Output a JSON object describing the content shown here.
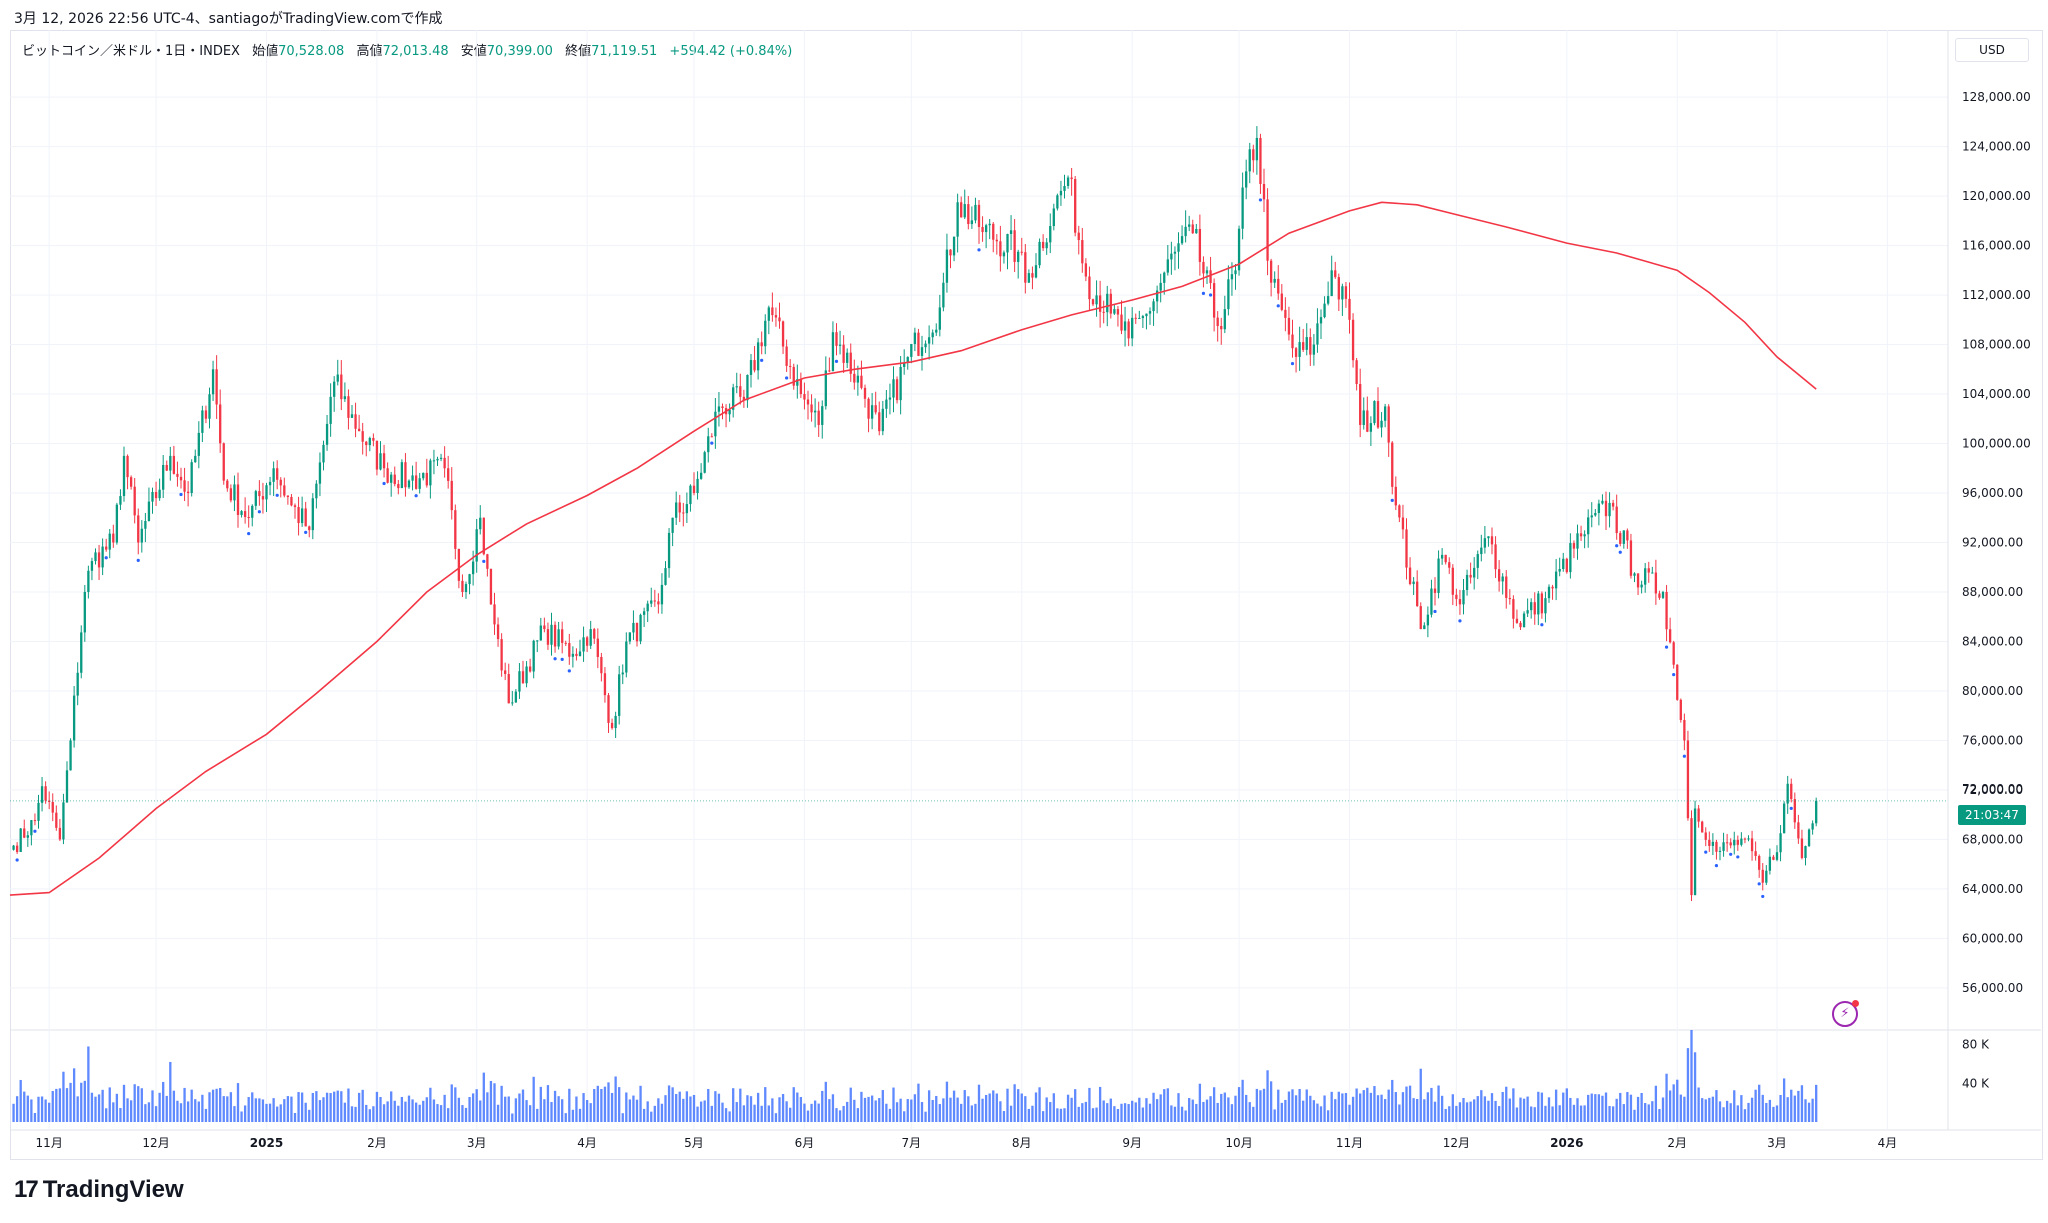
{
  "header": {
    "timestamp_line": "3月 12, 2026 22:56 UTC-4、santiagoがTradingView.comで作成",
    "symbol": "ビットコイン／米ドル・1日・INDEX",
    "open_label": "始値",
    "open": "70,528.08",
    "high_label": "高値",
    "high": "72,013.48",
    "low_label": "安値",
    "low": "70,399.00",
    "close_label": "終値",
    "close": "71,119.51",
    "change": "+594.42 (+0.84%)"
  },
  "currency": "USD",
  "countdown": "21:03:47",
  "last_price": "72,000.00",
  "brand": "TradingView",
  "colors": {
    "up": "#089981",
    "down": "#f23645",
    "ma": "#f23645",
    "volume": "#2962ff",
    "marker": "#2962ff"
  },
  "chart_data": {
    "type": "candlestick",
    "interval": "1D",
    "price_axis": {
      "range": [
        53000,
        131000
      ],
      "ticks": [
        128000,
        124000,
        120000,
        116000,
        112000,
        108000,
        104000,
        100000,
        96000,
        92000,
        88000,
        84000,
        80000,
        76000,
        72000,
        68000,
        64000,
        60000,
        56000
      ],
      "tick_labels": [
        "128,000.00",
        "124,000.00",
        "120,000.00",
        "116,000.00",
        "112,000.00",
        "108,000.00",
        "104,000.00",
        "100,000.00",
        "96,000.00",
        "92,000.00",
        "88,000.00",
        "84,000.00",
        "80,000.00",
        "76,000.00",
        "72,000.00",
        "68,000.00",
        "64,000.00",
        "60,000.00",
        "56,000.00"
      ]
    },
    "volume_axis": {
      "ticks": [
        80000,
        40000
      ],
      "tick_labels": [
        "80 K",
        "40 K"
      ]
    },
    "time_axis": {
      "labels": [
        "11月",
        "12月",
        "2025",
        "2月",
        "3月",
        "4月",
        "5月",
        "6月",
        "7月",
        "8月",
        "9月",
        "10月",
        "11月",
        "12月",
        "2026",
        "2月",
        "3月",
        "4月"
      ],
      "dates": [
        "2024-11-01",
        "2024-12-01",
        "2025-01-01",
        "2025-02-01",
        "2025-03-01",
        "2025-04-01",
        "2025-05-01",
        "2025-06-01",
        "2025-07-01",
        "2025-08-01",
        "2025-09-01",
        "2025-10-01",
        "2025-11-01",
        "2025-12-01",
        "2026-01-01",
        "2026-02-01",
        "2026-03-01",
        "2026-04-01"
      ],
      "bold": [
        false,
        false,
        true,
        false,
        false,
        false,
        false,
        false,
        false,
        false,
        false,
        false,
        false,
        false,
        true,
        false,
        false,
        false
      ],
      "range": [
        "2024-10-21",
        "2026-04-18"
      ]
    },
    "close_anchors": [
      [
        "2024-10-22",
        67500
      ],
      [
        "2024-10-28",
        69500
      ],
      [
        "2024-10-30",
        72300
      ],
      [
        "2024-11-04",
        68000
      ],
      [
        "2024-11-07",
        76000
      ],
      [
        "2024-11-11",
        88000
      ],
      [
        "2024-11-13",
        90500
      ],
      [
        "2024-11-19",
        92000
      ],
      [
        "2024-11-22",
        99000
      ],
      [
        "2024-11-26",
        92000
      ],
      [
        "2024-12-05",
        99000
      ],
      [
        "2024-12-10",
        96000
      ],
      [
        "2024-12-17",
        106000
      ],
      [
        "2024-12-20",
        97000
      ],
      [
        "2024-12-27",
        94000
      ],
      [
        "2025-01-03",
        98000
      ],
      [
        "2025-01-08",
        95000
      ],
      [
        "2025-01-13",
        93000
      ],
      [
        "2025-01-20",
        105000
      ],
      [
        "2025-01-27",
        101000
      ],
      [
        "2025-02-03",
        98000
      ],
      [
        "2025-02-10",
        97000
      ],
      [
        "2025-02-20",
        98000
      ],
      [
        "2025-02-25",
        88000
      ],
      [
        "2025-03-02",
        94000
      ],
      [
        "2025-03-05",
        87000
      ],
      [
        "2025-03-10",
        79000
      ],
      [
        "2025-03-20",
        85000
      ],
      [
        "2025-03-28",
        83000
      ],
      [
        "2025-04-02",
        85000
      ],
      [
        "2025-04-08",
        77000
      ],
      [
        "2025-04-12",
        84000
      ],
      [
        "2025-04-21",
        87000
      ],
      [
        "2025-04-25",
        94000
      ],
      [
        "2025-05-01",
        96000
      ],
      [
        "2025-05-08",
        103000
      ],
      [
        "2025-05-15",
        103500
      ],
      [
        "2025-05-22",
        111000
      ],
      [
        "2025-05-31",
        104000
      ],
      [
        "2025-06-05",
        101500
      ],
      [
        "2025-06-09",
        109000
      ],
      [
        "2025-06-17",
        104500
      ],
      [
        "2025-06-22",
        101000
      ],
      [
        "2025-06-30",
        107000
      ],
      [
        "2025-07-09",
        111000
      ],
      [
        "2025-07-14",
        119500
      ],
      [
        "2025-07-20",
        117500
      ],
      [
        "2025-07-31",
        115500
      ],
      [
        "2025-08-02",
        113000
      ],
      [
        "2025-08-10",
        119000
      ],
      [
        "2025-08-14",
        121500
      ],
      [
        "2025-08-19",
        113500
      ],
      [
        "2025-08-26",
        110500
      ],
      [
        "2025-08-31",
        108500
      ],
      [
        "2025-09-05",
        110500
      ],
      [
        "2025-09-13",
        115500
      ],
      [
        "2025-09-18",
        117000
      ],
      [
        "2025-09-25",
        109500
      ],
      [
        "2025-09-30",
        114000
      ],
      [
        "2025-10-03",
        122000
      ],
      [
        "2025-10-06",
        124700
      ],
      [
        "2025-10-10",
        113000
      ],
      [
        "2025-10-17",
        107000
      ],
      [
        "2025-10-22",
        108000
      ],
      [
        "2025-10-27",
        114000
      ],
      [
        "2025-11-01",
        110000
      ],
      [
        "2025-11-04",
        101500
      ],
      [
        "2025-11-11",
        103000
      ],
      [
        "2025-11-14",
        95000
      ],
      [
        "2025-11-21",
        85000
      ],
      [
        "2025-11-27",
        91000
      ],
      [
        "2025-12-02",
        87000
      ],
      [
        "2025-12-10",
        92500
      ],
      [
        "2025-12-18",
        85500
      ],
      [
        "2025-12-26",
        87500
      ],
      [
        "2026-01-05",
        92500
      ],
      [
        "2026-01-13",
        95200
      ],
      [
        "2026-01-20",
        89500
      ],
      [
        "2026-01-28",
        88000
      ],
      [
        "2026-02-03",
        76000
      ],
      [
        "2026-02-05",
        63500
      ],
      [
        "2026-02-06",
        70500
      ],
      [
        "2026-02-12",
        67000
      ],
      [
        "2026-02-20",
        68000
      ],
      [
        "2026-02-25",
        64500
      ],
      [
        "2026-03-02",
        68500
      ],
      [
        "2026-03-04",
        72500
      ],
      [
        "2026-03-08",
        66500
      ],
      [
        "2026-03-12",
        71119.51
      ]
    ],
    "ma_line": {
      "color": "#f23645",
      "points": [
        [
          "2024-10-21",
          63500
        ],
        [
          "2024-11-01",
          63700
        ],
        [
          "2024-11-15",
          66500
        ],
        [
          "2024-12-01",
          70500
        ],
        [
          "2024-12-15",
          73500
        ],
        [
          "2025-01-01",
          76500
        ],
        [
          "2025-01-15",
          79800
        ],
        [
          "2025-02-01",
          84000
        ],
        [
          "2025-02-15",
          88000
        ],
        [
          "2025-03-01",
          91000
        ],
        [
          "2025-03-15",
          93500
        ],
        [
          "2025-04-01",
          95800
        ],
        [
          "2025-04-15",
          98000
        ],
        [
          "2025-05-01",
          101000
        ],
        [
          "2025-05-15",
          103500
        ],
        [
          "2025-06-01",
          105300
        ],
        [
          "2025-06-15",
          106000
        ],
        [
          "2025-07-01",
          106600
        ],
        [
          "2025-07-15",
          107500
        ],
        [
          "2025-08-01",
          109200
        ],
        [
          "2025-08-15",
          110400
        ],
        [
          "2025-09-01",
          111600
        ],
        [
          "2025-09-15",
          112700
        ],
        [
          "2025-10-01",
          114500
        ],
        [
          "2025-10-15",
          117000
        ],
        [
          "2025-11-01",
          118800
        ],
        [
          "2025-11-10",
          119500
        ],
        [
          "2025-11-20",
          119300
        ],
        [
          "2025-12-01",
          118500
        ],
        [
          "2025-12-15",
          117500
        ],
        [
          "2026-01-01",
          116200
        ],
        [
          "2026-01-15",
          115400
        ],
        [
          "2026-02-01",
          114000
        ],
        [
          "2026-02-10",
          112200
        ],
        [
          "2026-02-20",
          109800
        ],
        [
          "2026-03-01",
          107000
        ],
        [
          "2026-03-12",
          104400
        ]
      ]
    },
    "volume_highlights": [
      [
        "2024-11-12",
        78000
      ],
      [
        "2024-12-05",
        62000
      ],
      [
        "2025-03-03",
        51000
      ],
      [
        "2025-04-09",
        47000
      ],
      [
        "2025-10-10",
        42000
      ],
      [
        "2025-11-21",
        55000
      ],
      [
        "2026-02-05",
        98000
      ],
      [
        "2026-02-06",
        72000
      ],
      [
        "2026-03-03",
        45000
      ]
    ]
  }
}
